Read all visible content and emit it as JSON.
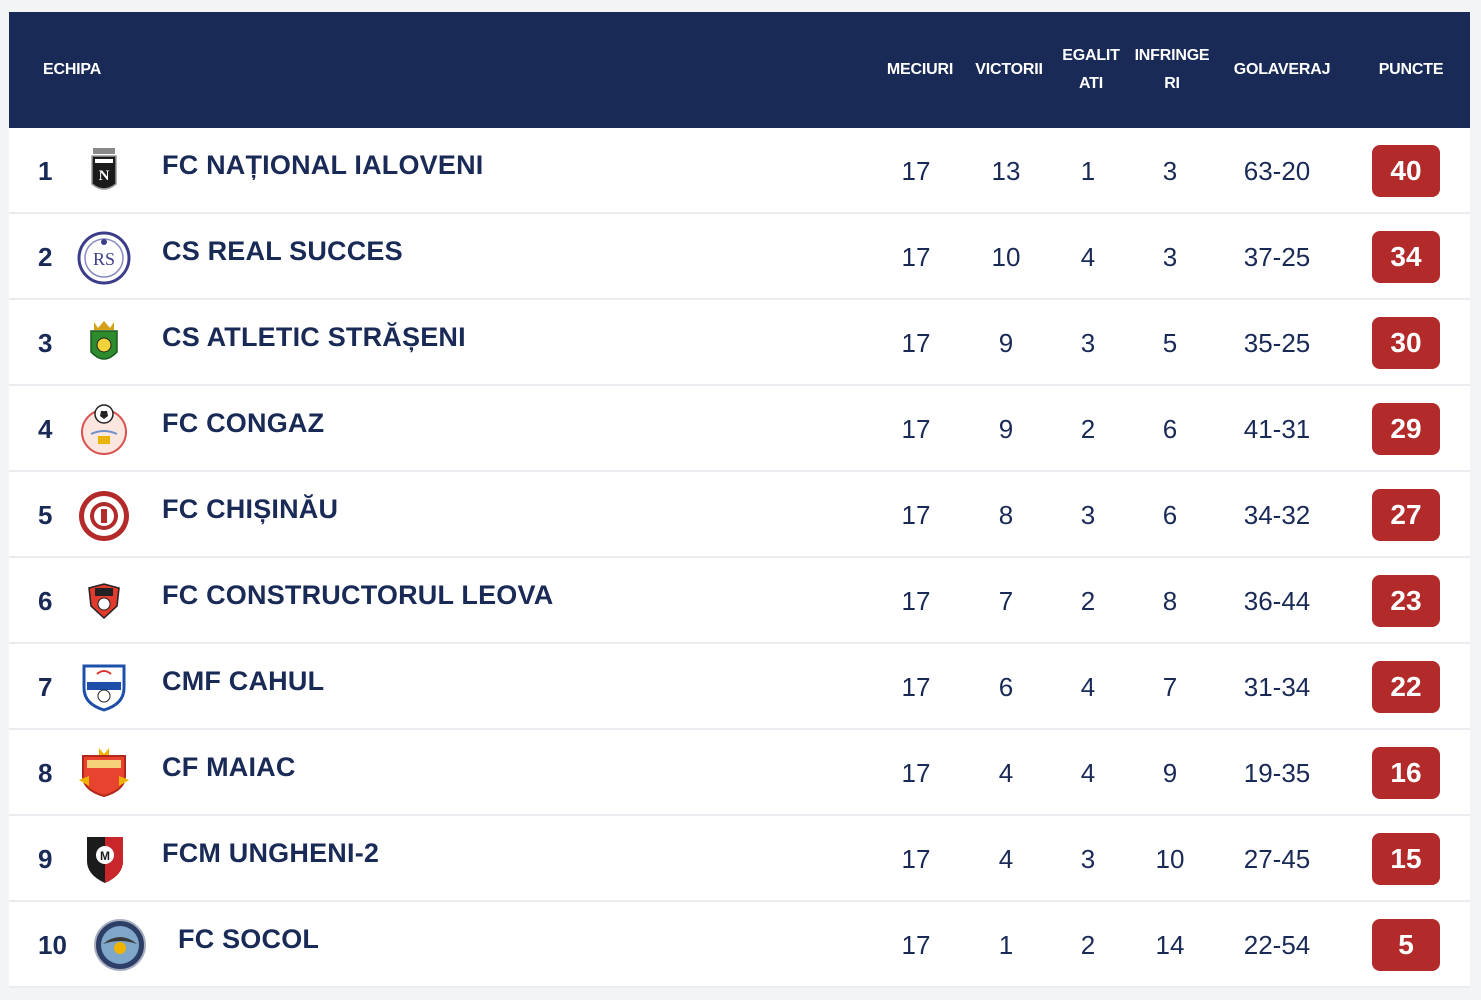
{
  "headers": {
    "team": "ECHIPA",
    "played": "MECIURI",
    "wins": "VICTORII",
    "draws_line1": "EGALIT",
    "draws_line2": "ATI",
    "losses_line1": "INFRINGE",
    "losses_line2": "RI",
    "goal_diff": "GOLAVERAJ",
    "points": "PUNCTE"
  },
  "rows": [
    {
      "rank": "1",
      "team": "FC NAȚIONAL IALOVENI",
      "played": "17",
      "wins": "13",
      "draws": "1",
      "losses": "3",
      "goals": "63-20",
      "points": "40",
      "logo_icon": "national-ialoveni-crest-icon"
    },
    {
      "rank": "2",
      "team": "CS REAL SUCCES",
      "played": "17",
      "wins": "10",
      "draws": "4",
      "losses": "3",
      "goals": "37-25",
      "points": "34",
      "logo_icon": "real-succes-crest-icon"
    },
    {
      "rank": "3",
      "team": "CS ATLETIC STRĂȘENI",
      "played": "17",
      "wins": "9",
      "draws": "3",
      "losses": "5",
      "goals": "35-25",
      "points": "30",
      "logo_icon": "atletic-straseni-crest-icon"
    },
    {
      "rank": "4",
      "team": "FC CONGAZ",
      "played": "17",
      "wins": "9",
      "draws": "2",
      "losses": "6",
      "goals": "41-31",
      "points": "29",
      "logo_icon": "congaz-crest-icon"
    },
    {
      "rank": "5",
      "team": "FC CHIȘINĂU",
      "played": "17",
      "wins": "8",
      "draws": "3",
      "losses": "6",
      "goals": "34-32",
      "points": "27",
      "logo_icon": "chisinau-crest-icon"
    },
    {
      "rank": "6",
      "team": "FC CONSTRUCTORUL LEOVA",
      "played": "17",
      "wins": "7",
      "draws": "2",
      "losses": "8",
      "goals": "36-44",
      "points": "23",
      "logo_icon": "constructorul-leova-crest-icon"
    },
    {
      "rank": "7",
      "team": "CMF CAHUL",
      "played": "17",
      "wins": "6",
      "draws": "4",
      "losses": "7",
      "goals": "31-34",
      "points": "22",
      "logo_icon": "cahul-crest-icon"
    },
    {
      "rank": "8",
      "team": "CF MAIAC",
      "played": "17",
      "wins": "4",
      "draws": "4",
      "losses": "9",
      "goals": "19-35",
      "points": "16",
      "logo_icon": "maiac-crest-icon"
    },
    {
      "rank": "9",
      "team": "FCM UNGHENI-2",
      "played": "17",
      "wins": "4",
      "draws": "3",
      "losses": "10",
      "goals": "27-45",
      "points": "15",
      "logo_icon": "ungheni-crest-icon"
    },
    {
      "rank": "10",
      "team": "FC SOCOL",
      "played": "17",
      "wins": "1",
      "draws": "2",
      "losses": "14",
      "goals": "22-54",
      "points": "5",
      "logo_icon": "socol-crest-icon"
    }
  ],
  "colors": {
    "header_bg": "#1a2a57",
    "text": "#1a2a57",
    "points_badge": "#b22a2a",
    "row_border": "#eaecef"
  }
}
